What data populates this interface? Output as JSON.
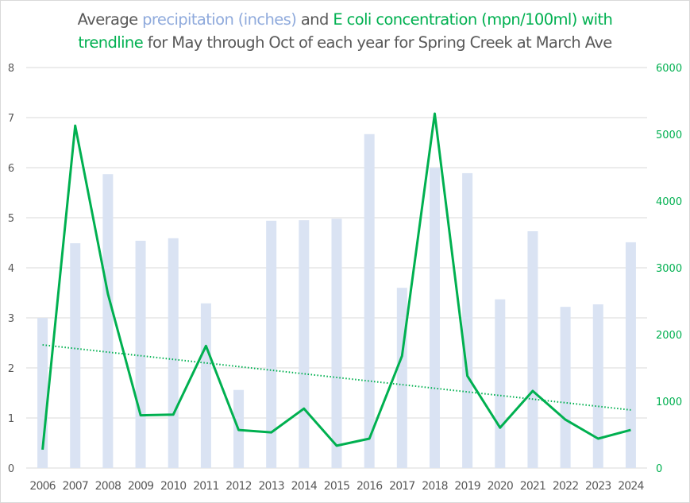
{
  "chart_data": {
    "type": "bar",
    "title_parts": [
      {
        "text": "Average ",
        "color": "#595959"
      },
      {
        "text": "precipitation (inches)",
        "color": "#8FAADC"
      },
      {
        "text": " and ",
        "color": "#595959"
      },
      {
        "text": "E coli concentration (mpn/100ml) with",
        "color": "#00B050"
      },
      {
        "text": "trendline",
        "color": "#00B050"
      },
      {
        "text": " for May through Oct of each year for Spring Creek at March Ave",
        "color": "#595959"
      }
    ],
    "title": "Average precipitation (inches) and E coli concentration (mpn/100ml) with trendline for May through Oct of each year for Spring Creek at March Ave",
    "categories": [
      "2006",
      "2007",
      "2008",
      "2009",
      "2010",
      "2011",
      "2012",
      "2013",
      "2014",
      "2015",
      "2016",
      "2017",
      "2018",
      "2019",
      "2020",
      "2021",
      "2022",
      "2023",
      "2024"
    ],
    "series": [
      {
        "name": "Average precipitation (inches)",
        "type": "bar",
        "axis": "left",
        "color": "#DAE3F3",
        "values": [
          3.0,
          4.49,
          5.87,
          4.54,
          4.59,
          3.29,
          1.56,
          4.94,
          4.95,
          4.98,
          6.67,
          3.6,
          6.0,
          5.89,
          3.37,
          4.73,
          3.22,
          3.27,
          4.51
        ]
      },
      {
        "name": "E coli concentration (mpn/100ml)",
        "type": "line",
        "axis": "right",
        "color": "#00B050",
        "values": [
          275,
          5130,
          2610,
          790,
          800,
          1830,
          570,
          535,
          890,
          335,
          440,
          1680,
          5310,
          1380,
          605,
          1155,
          725,
          440,
          570
        ]
      },
      {
        "name": "E coli trendline",
        "type": "trendline-linear",
        "axis": "right",
        "color": "#00B050",
        "start": 1845,
        "end": 870
      }
    ],
    "left_axis": {
      "min": 0,
      "max": 8,
      "ticks": [
        "0",
        "1",
        "2",
        "3",
        "4",
        "5",
        "6",
        "7",
        "8"
      ],
      "color": "#595959"
    },
    "right_axis": {
      "min": 0,
      "max": 6000,
      "ticks": [
        "0",
        "1000",
        "2000",
        "3000",
        "4000",
        "5000",
        "6000"
      ],
      "color": "#00B050"
    },
    "xlabel": "",
    "ylabel": "",
    "grid": true,
    "legend": "none"
  }
}
